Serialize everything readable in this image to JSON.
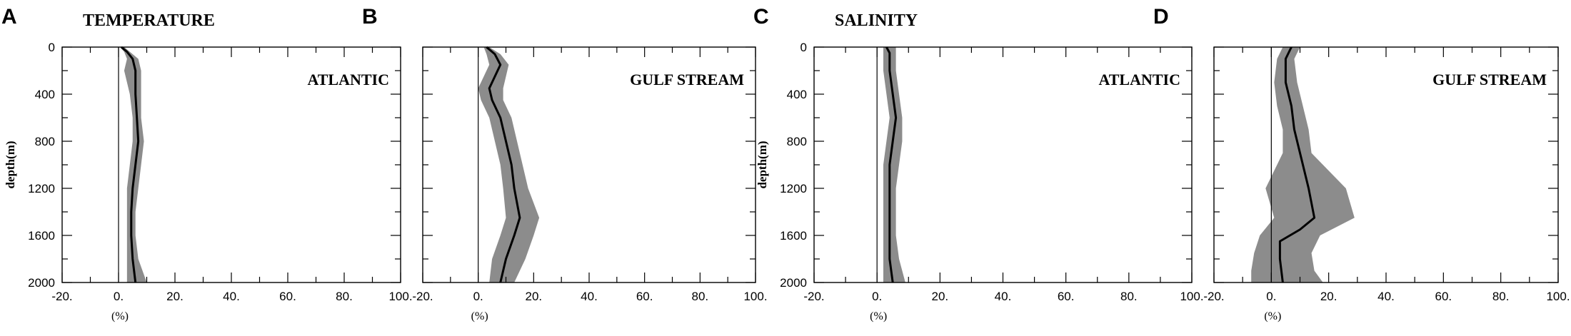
{
  "chart_data": [
    {
      "type": "area",
      "panel_letter": "A",
      "title": "TEMPERATURE",
      "region_label": "ATLANTIC",
      "xlabel": "(%)",
      "ylabel": "depth(m)",
      "xlim": [
        -20,
        100
      ],
      "ylim": [
        0,
        2000
      ],
      "y_inverted": true,
      "xticks": [
        "-20.",
        "0.",
        "20.",
        "40.",
        "60.",
        "80.",
        "100."
      ],
      "yticks": [
        "0",
        "400",
        "800",
        "1200",
        "1600",
        "2000"
      ],
      "series": [
        {
          "mean": [
            [
              1,
              0
            ],
            [
              3,
              40
            ],
            [
              5,
              100
            ],
            [
              6,
              200
            ],
            [
              6,
              400
            ],
            [
              6.5,
              600
            ],
            [
              7,
              800
            ],
            [
              6,
              1000
            ],
            [
              5,
              1200
            ],
            [
              4.5,
              1400
            ],
            [
              4.5,
              1600
            ],
            [
              5,
              1800
            ],
            [
              6,
              2000
            ]
          ],
          "lower": [
            [
              0.5,
              0
            ],
            [
              2,
              40
            ],
            [
              3,
              100
            ],
            [
              2,
              200
            ],
            [
              4,
              400
            ],
            [
              5,
              600
            ],
            [
              5,
              800
            ],
            [
              4,
              1000
            ],
            [
              3,
              1200
            ],
            [
              3,
              1400
            ],
            [
              3,
              1600
            ],
            [
              3,
              1800
            ],
            [
              3,
              2000
            ]
          ],
          "upper": [
            [
              2,
              0
            ],
            [
              4,
              40
            ],
            [
              7,
              100
            ],
            [
              8,
              200
            ],
            [
              8,
              400
            ],
            [
              8,
              600
            ],
            [
              9,
              800
            ],
            [
              8,
              1000
            ],
            [
              7,
              1200
            ],
            [
              6,
              1400
            ],
            [
              6,
              1600
            ],
            [
              7,
              1800
            ],
            [
              10,
              2000
            ]
          ]
        }
      ]
    },
    {
      "type": "area",
      "panel_letter": "B",
      "title": "",
      "region_label": "GULF STREAM",
      "xlabel": "(%)",
      "ylabel": "",
      "xlim": [
        -20,
        100
      ],
      "ylim": [
        0,
        2000
      ],
      "y_inverted": true,
      "xticks": [
        "-20.",
        "0.",
        "20.",
        "40.",
        "60.",
        "80.",
        "100."
      ],
      "yticks": [],
      "series": [
        {
          "mean": [
            [
              3,
              0
            ],
            [
              6,
              60
            ],
            [
              8,
              150
            ],
            [
              6,
              250
            ],
            [
              4,
              350
            ],
            [
              5,
              450
            ],
            [
              8,
              600
            ],
            [
              10,
              800
            ],
            [
              12,
              1000
            ],
            [
              13,
              1200
            ],
            [
              15,
              1450
            ],
            [
              13,
              1600
            ],
            [
              10,
              1800
            ],
            [
              8,
              2000
            ]
          ],
          "lower": [
            [
              2,
              0
            ],
            [
              3,
              60
            ],
            [
              4,
              150
            ],
            [
              2,
              250
            ],
            [
              0,
              350
            ],
            [
              1,
              450
            ],
            [
              4,
              600
            ],
            [
              6,
              800
            ],
            [
              8,
              1000
            ],
            [
              9,
              1200
            ],
            [
              10,
              1450
            ],
            [
              8,
              1600
            ],
            [
              5,
              1800
            ],
            [
              4,
              2000
            ]
          ],
          "upper": [
            [
              4,
              0
            ],
            [
              8,
              60
            ],
            [
              11,
              150
            ],
            [
              10,
              250
            ],
            [
              9,
              350
            ],
            [
              9,
              450
            ],
            [
              12,
              600
            ],
            [
              14,
              800
            ],
            [
              16,
              1000
            ],
            [
              18,
              1200
            ],
            [
              22,
              1450
            ],
            [
              20,
              1600
            ],
            [
              17,
              1800
            ],
            [
              13,
              2000
            ]
          ]
        }
      ]
    },
    {
      "type": "area",
      "panel_letter": "C",
      "title": "SALINITY",
      "region_label": "ATLANTIC",
      "xlabel": "(%)",
      "ylabel": "depth(m)",
      "xlim": [
        -20,
        100
      ],
      "ylim": [
        0,
        2000
      ],
      "y_inverted": true,
      "xticks": [
        "-20.",
        "0.",
        "20.",
        "40.",
        "60.",
        "80.",
        "100."
      ],
      "yticks": [
        "0",
        "400",
        "800",
        "1200",
        "1600",
        "2000"
      ],
      "series": [
        {
          "mean": [
            [
              3,
              0
            ],
            [
              4,
              50
            ],
            [
              4,
              200
            ],
            [
              5,
              400
            ],
            [
              6,
              600
            ],
            [
              5,
              800
            ],
            [
              4,
              1000
            ],
            [
              4,
              1200
            ],
            [
              4,
              1400
            ],
            [
              4,
              1600
            ],
            [
              4,
              1800
            ],
            [
              5,
              2000
            ]
          ],
          "lower": [
            [
              2,
              0
            ],
            [
              2,
              50
            ],
            [
              2,
              200
            ],
            [
              3,
              400
            ],
            [
              4,
              600
            ],
            [
              3,
              800
            ],
            [
              2,
              1000
            ],
            [
              2,
              1200
            ],
            [
              2,
              1400
            ],
            [
              2,
              1600
            ],
            [
              2,
              1800
            ],
            [
              2,
              2000
            ]
          ],
          "upper": [
            [
              6,
              0
            ],
            [
              6,
              50
            ],
            [
              6,
              200
            ],
            [
              7,
              400
            ],
            [
              8,
              600
            ],
            [
              8,
              800
            ],
            [
              7,
              1000
            ],
            [
              6,
              1200
            ],
            [
              6,
              1400
            ],
            [
              6,
              1600
            ],
            [
              7,
              1800
            ],
            [
              9,
              2000
            ]
          ]
        }
      ]
    },
    {
      "type": "area",
      "panel_letter": "D",
      "title": "",
      "region_label": "GULF STREAM",
      "xlabel": "(%)",
      "ylabel": "",
      "xlim": [
        -20,
        100
      ],
      "ylim": [
        0,
        2000
      ],
      "y_inverted": true,
      "xticks": [
        "-20.",
        "0.",
        "20.",
        "40.",
        "60.",
        "80.",
        "100."
      ],
      "yticks": [],
      "series": [
        {
          "mean": [
            [
              7,
              0
            ],
            [
              5,
              100
            ],
            [
              5,
              300
            ],
            [
              7,
              500
            ],
            [
              8,
              700
            ],
            [
              10,
              900
            ],
            [
              13,
              1200
            ],
            [
              15,
              1450
            ],
            [
              10,
              1550
            ],
            [
              3,
              1650
            ],
            [
              3,
              1800
            ],
            [
              4,
              2000
            ]
          ],
          "lower": [
            [
              4,
              0
            ],
            [
              2,
              100
            ],
            [
              1,
              300
            ],
            [
              2,
              500
            ],
            [
              4,
              700
            ],
            [
              4,
              900
            ],
            [
              -2,
              1200
            ],
            [
              1,
              1450
            ],
            [
              -4,
              1600
            ],
            [
              -6,
              1750
            ],
            [
              -7,
              1900
            ],
            [
              -7,
              2000
            ]
          ],
          "upper": [
            [
              10,
              0
            ],
            [
              8,
              100
            ],
            [
              9,
              300
            ],
            [
              11,
              500
            ],
            [
              13,
              700
            ],
            [
              14,
              900
            ],
            [
              26,
              1200
            ],
            [
              29,
              1450
            ],
            [
              17,
              1600
            ],
            [
              14,
              1750
            ],
            [
              15,
              1900
            ],
            [
              18,
              2000
            ]
          ]
        }
      ]
    }
  ]
}
